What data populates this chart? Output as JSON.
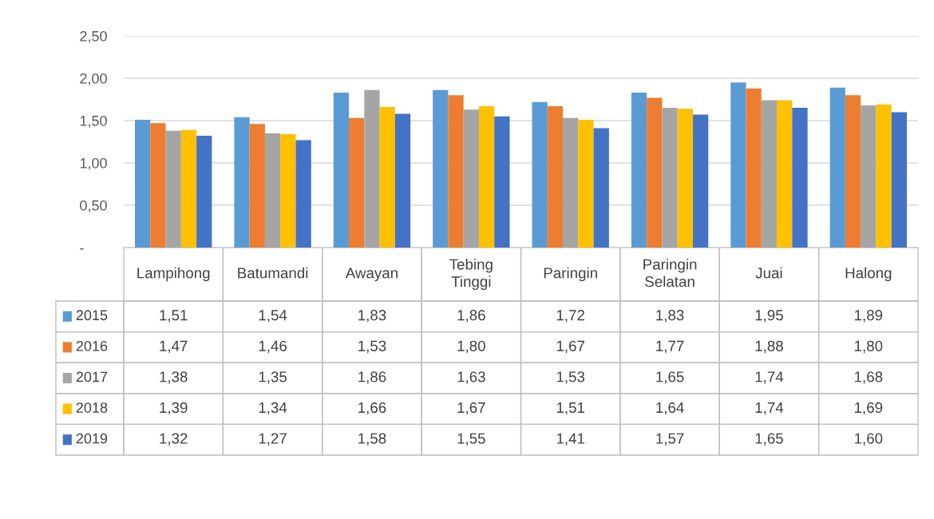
{
  "chart_data": {
    "type": "bar",
    "categories": [
      "Lampihong",
      "Batumandi",
      "Awayan",
      "Tebing\nTinggi",
      "Paringin",
      "Paringin\nSelatan",
      "Juai",
      "Halong"
    ],
    "series": [
      {
        "name": "2015",
        "color": "#5b9bd5",
        "values": [
          1.51,
          1.54,
          1.83,
          1.86,
          1.72,
          1.83,
          1.95,
          1.89
        ],
        "value_labels": [
          "1,51",
          "1,54",
          "1,83",
          "1,86",
          "1,72",
          "1,83",
          "1,95",
          "1,89"
        ]
      },
      {
        "name": "2016",
        "color": "#ed7d31",
        "values": [
          1.47,
          1.46,
          1.53,
          1.8,
          1.67,
          1.77,
          1.88,
          1.8
        ],
        "value_labels": [
          "1,47",
          "1,46",
          "1,53",
          "1,80",
          "1,67",
          "1,77",
          "1,88",
          "1,80"
        ]
      },
      {
        "name": "2017",
        "color": "#a5a5a5",
        "values": [
          1.38,
          1.35,
          1.86,
          1.63,
          1.53,
          1.65,
          1.74,
          1.68
        ],
        "value_labels": [
          "1,38",
          "1,35",
          "1,86",
          "1,63",
          "1,53",
          "1,65",
          "1,74",
          "1,68"
        ]
      },
      {
        "name": "2018",
        "color": "#ffc000",
        "values": [
          1.39,
          1.34,
          1.66,
          1.67,
          1.51,
          1.64,
          1.74,
          1.69
        ],
        "value_labels": [
          "1,39",
          "1,34",
          "1,66",
          "1,67",
          "1,51",
          "1,64",
          "1,74",
          "1,69"
        ]
      },
      {
        "name": "2019",
        "color": "#4472c4",
        "values": [
          1.32,
          1.27,
          1.58,
          1.55,
          1.41,
          1.57,
          1.65,
          1.6
        ],
        "value_labels": [
          "1,32",
          "1,27",
          "1,58",
          "1,55",
          "1,41",
          "1,57",
          "1,65",
          "1,60"
        ]
      }
    ],
    "ylim": [
      0,
      2.5
    ],
    "yticks": [
      {
        "value": 0,
        "label": "-"
      },
      {
        "value": 0.5,
        "label": "0,50"
      },
      {
        "value": 1.0,
        "label": "1,00"
      },
      {
        "value": 1.5,
        "label": "1,50"
      },
      {
        "value": 2.0,
        "label": "2,00"
      },
      {
        "value": 2.5,
        "label": "2,50"
      }
    ],
    "grid": "y",
    "legend": "bottom"
  }
}
